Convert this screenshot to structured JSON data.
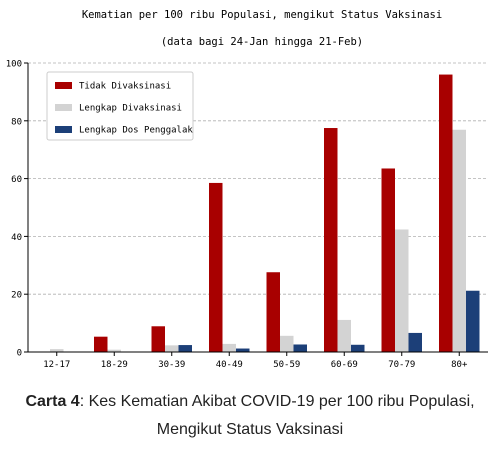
{
  "chart_data": {
    "type": "bar",
    "title": "Kematian per 100 ribu Populasi, mengikut Status Vaksinasi",
    "subtitle": "(data bagi 24-Jan hingga 21-Feb)",
    "xlabel": "",
    "ylabel": "",
    "categories": [
      "12-17",
      "18-29",
      "30-39",
      "40-49",
      "50-59",
      "60-69",
      "70-79",
      "80+"
    ],
    "ylim": [
      0,
      100
    ],
    "yticks": [
      "0",
      "20",
      "40",
      "60",
      "80",
      "100"
    ],
    "grid": true,
    "legend_position": "top-left",
    "series": [
      {
        "name": "Tidak Divaksinasi",
        "color": "#a80000",
        "values": [
          0,
          5.3,
          8.9,
          58.5,
          27.6,
          77.5,
          63.5,
          96.0
        ]
      },
      {
        "name": "Lengkap Divaksinasi",
        "color": "#d3d3d3",
        "values": [
          1.0,
          0.8,
          2.3,
          2.8,
          5.6,
          11.1,
          42.4,
          76.9
        ]
      },
      {
        "name": "Lengkap Dos Penggalak",
        "color": "#1c3f78",
        "values": [
          0,
          0,
          2.4,
          1.2,
          2.6,
          2.5,
          6.6,
          21.2
        ]
      }
    ]
  },
  "caption": {
    "label": "Carta 4",
    "line1": ": Kes Kematian Akibat COVID-19 per 100 ribu Populasi,",
    "line2": "Mengikut Status Vaksinasi"
  }
}
